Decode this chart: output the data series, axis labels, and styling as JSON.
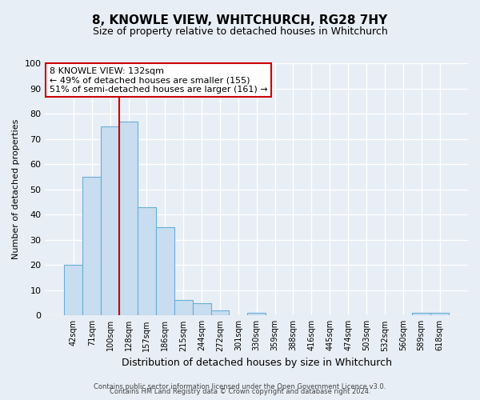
{
  "title": "8, KNOWLE VIEW, WHITCHURCH, RG28 7HY",
  "subtitle": "Size of property relative to detached houses in Whitchurch",
  "bar_labels": [
    "42sqm",
    "71sqm",
    "100sqm",
    "128sqm",
    "157sqm",
    "186sqm",
    "215sqm",
    "244sqm",
    "272sqm",
    "301sqm",
    "330sqm",
    "359sqm",
    "388sqm",
    "416sqm",
    "445sqm",
    "474sqm",
    "503sqm",
    "532sqm",
    "560sqm",
    "589sqm",
    "618sqm"
  ],
  "bar_values": [
    20,
    55,
    75,
    77,
    43,
    35,
    6,
    5,
    2,
    0,
    1,
    0,
    0,
    0,
    0,
    0,
    0,
    0,
    0,
    1,
    1
  ],
  "bar_color": "#c8ddf0",
  "bar_edge_color": "#6aaed6",
  "ylabel": "Number of detached properties",
  "xlabel": "Distribution of detached houses by size in Whitchurch",
  "ylim": [
    0,
    100
  ],
  "yticks": [
    0,
    10,
    20,
    30,
    40,
    50,
    60,
    70,
    80,
    90,
    100
  ],
  "annotation_title": "8 KNOWLE VIEW: 132sqm",
  "annotation_line1": "← 49% of detached houses are smaller (155)",
  "annotation_line2": "51% of semi-detached houses are larger (161) →",
  "annotation_box_color": "#ffffff",
  "annotation_box_edge": "#cc0000",
  "marker_line_color": "#cc0000",
  "footer1": "Contains HM Land Registry data © Crown copyright and database right 2024.",
  "footer2": "Contains public sector information licensed under the Open Government Licence v3.0.",
  "bg_color": "#e8eef5",
  "plot_bg_color": "#e8eef5",
  "grid_color": "#ffffff",
  "title_fontsize": 11,
  "subtitle_fontsize": 9
}
